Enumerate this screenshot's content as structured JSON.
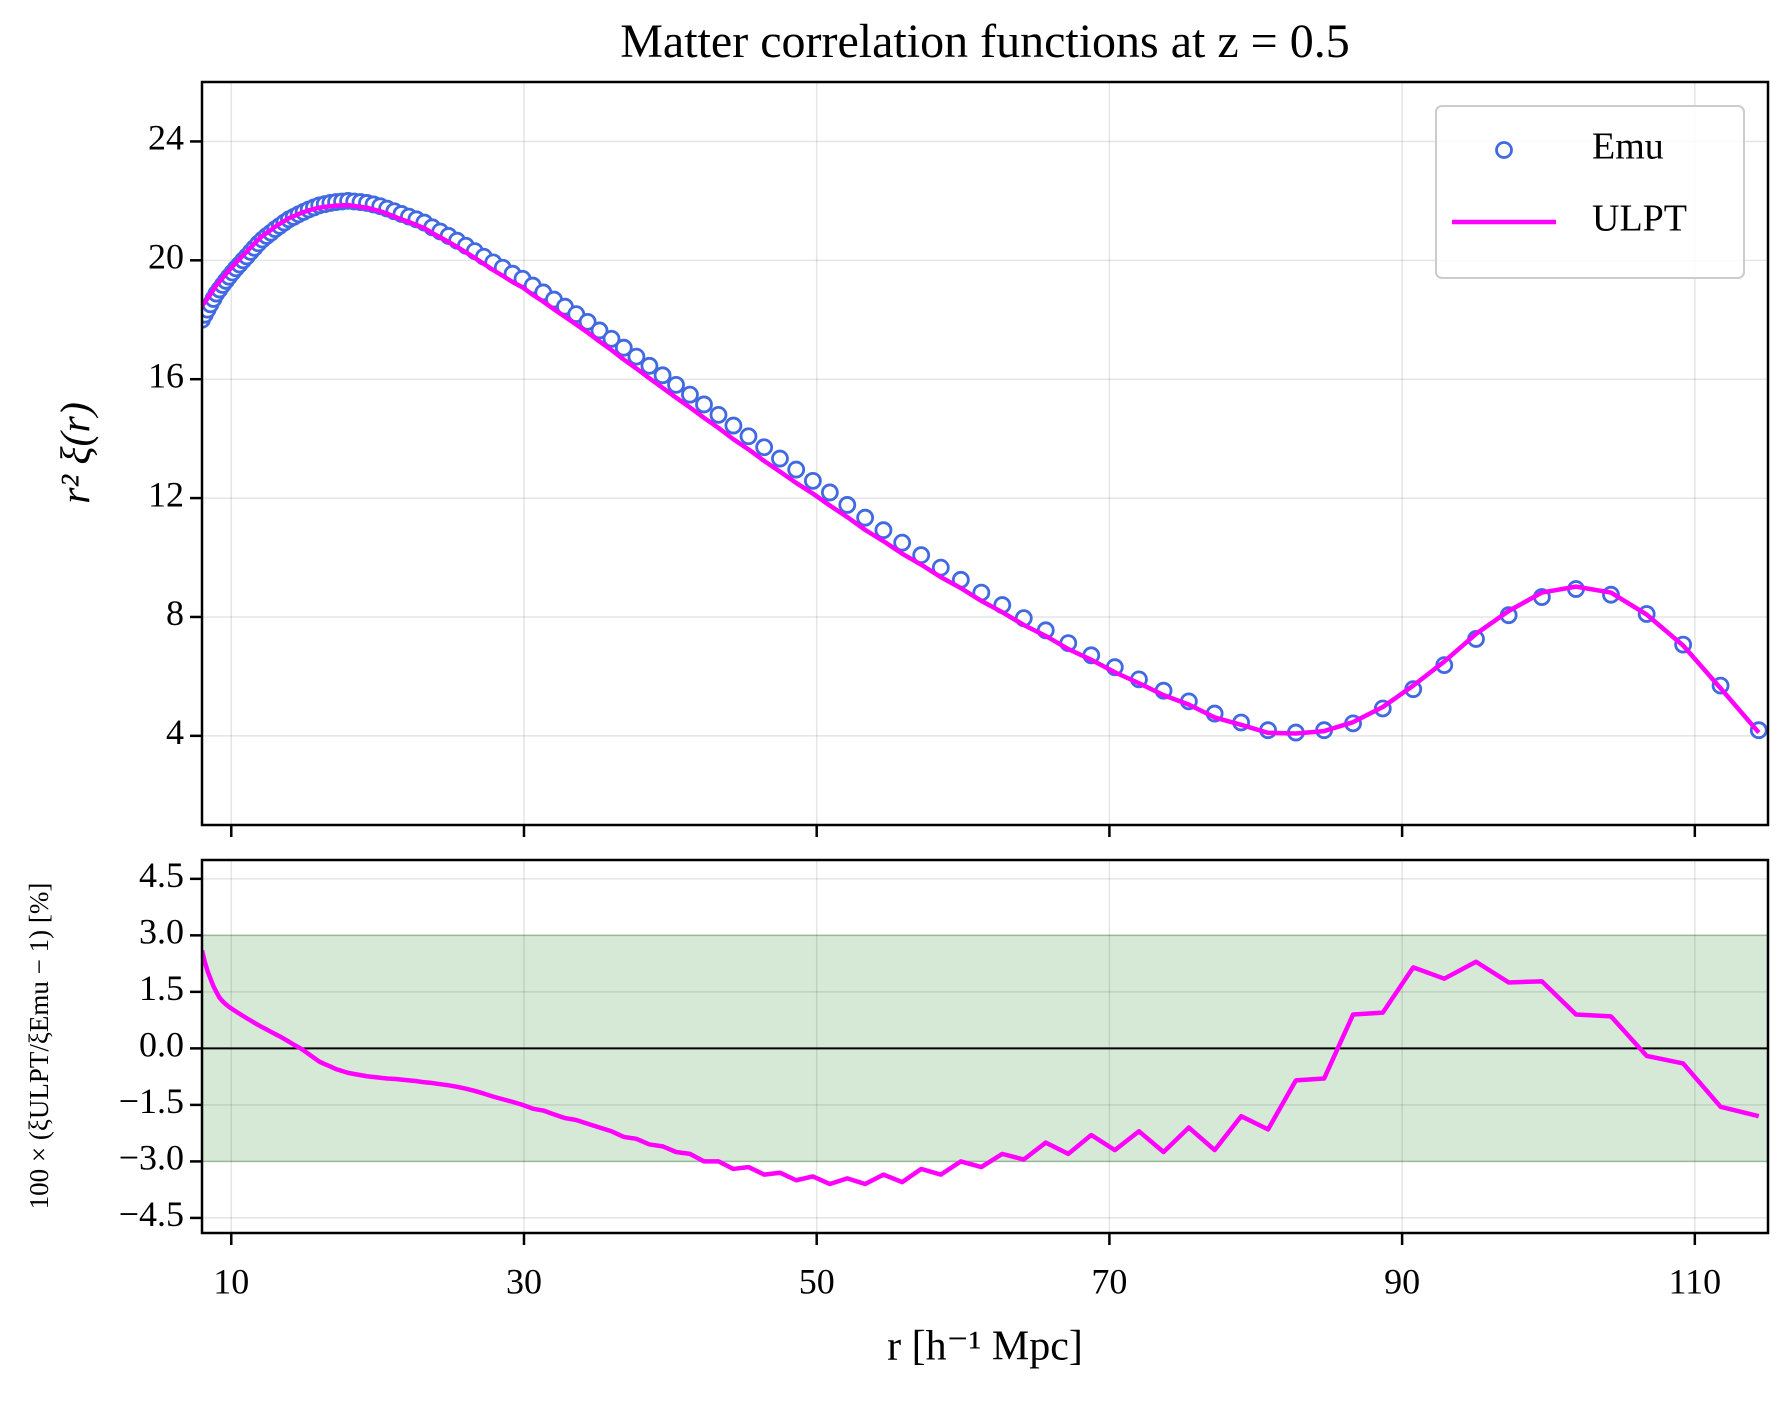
{
  "chart_data": [
    {
      "type": "line",
      "title": "Matter correlation functions at z = 0.5",
      "y_label": "r² ξ(r)",
      "x": [
        8.0,
        8.19,
        8.38,
        8.58,
        8.78,
        8.98,
        9.19,
        9.41,
        9.63,
        9.85,
        10.08,
        10.32,
        10.56,
        10.81,
        11.06,
        11.32,
        11.58,
        11.85,
        12.13,
        12.42,
        12.71,
        13.0,
        13.31,
        13.62,
        13.94,
        14.26,
        14.6,
        14.94,
        15.29,
        15.65,
        16.01,
        16.39,
        16.77,
        17.16,
        17.57,
        17.98,
        18.4,
        18.83,
        19.27,
        19.72,
        20.18,
        20.65,
        21.14,
        21.63,
        22.14,
        22.65,
        23.19,
        23.73,
        24.28,
        24.85,
        25.43,
        26.03,
        26.64,
        27.26,
        27.9,
        28.55,
        29.22,
        29.9,
        30.6,
        31.32,
        32.05,
        32.8,
        33.57,
        34.35,
        35.16,
        35.98,
        36.82,
        37.68,
        38.57,
        39.47,
        40.39,
        41.34,
        42.3,
        43.29,
        44.31,
        45.34,
        46.41,
        47.49,
        48.6,
        49.74,
        50.9,
        52.09,
        53.31,
        54.56,
        55.84,
        57.14,
        58.48,
        59.85,
        61.25,
        62.68,
        64.15,
        65.65,
        67.19,
        68.76,
        70.37,
        72.02,
        73.7,
        75.43,
        77.19,
        79.0,
        80.84,
        82.74,
        84.67,
        86.65,
        88.68,
        90.76,
        92.88,
        95.05,
        97.28,
        99.55,
        101.88,
        104.27,
        106.71,
        109.2,
        111.76,
        114.37
      ],
      "series": [
        {
          "name": "Emu",
          "style": "marker",
          "color": "#4169e1",
          "values": [
            18.0,
            18.17,
            18.34,
            18.52,
            18.7,
            18.88,
            19.02,
            19.17,
            19.31,
            19.45,
            19.59,
            19.73,
            19.86,
            20.0,
            20.13,
            20.28,
            20.42,
            20.57,
            20.7,
            20.82,
            20.93,
            21.05,
            21.16,
            21.27,
            21.38,
            21.46,
            21.55,
            21.63,
            21.71,
            21.78,
            21.85,
            21.89,
            21.93,
            21.96,
            21.98,
            22.0,
            21.98,
            21.96,
            21.93,
            21.88,
            21.82,
            21.74,
            21.65,
            21.56,
            21.47,
            21.38,
            21.27,
            21.11,
            20.97,
            20.82,
            20.66,
            20.49,
            20.31,
            20.12,
            19.93,
            19.75,
            19.55,
            19.38,
            19.15,
            18.92,
            18.68,
            18.44,
            18.19,
            17.93,
            17.64,
            17.36,
            17.06,
            16.76,
            16.45,
            16.13,
            15.81,
            15.48,
            15.15,
            14.8,
            14.44,
            14.08,
            13.71,
            13.33,
            12.96,
            12.58,
            12.19,
            11.77,
            11.34,
            10.92,
            10.5,
            10.08,
            9.66,
            9.25,
            8.82,
            8.4,
            7.96,
            7.55,
            7.12,
            6.71,
            6.31,
            5.9,
            5.52,
            5.16,
            4.75,
            4.45,
            4.19,
            4.11,
            4.19,
            4.42,
            4.92,
            5.57,
            6.38,
            7.26,
            8.06,
            8.67,
            8.94,
            8.75,
            8.1,
            7.07,
            5.69,
            4.19
          ]
        },
        {
          "name": "ULPT",
          "style": "line",
          "color": "#ff00ff",
          "values": [
            18.47,
            18.59,
            18.72,
            18.86,
            19.01,
            19.16,
            19.28,
            19.41,
            19.54,
            19.66,
            19.79,
            19.92,
            20.04,
            20.17,
            20.29,
            20.43,
            20.56,
            20.7,
            20.82,
            20.92,
            21.02,
            21.13,
            21.23,
            21.32,
            21.42,
            21.48,
            21.56,
            21.62,
            21.68,
            21.73,
            21.77,
            21.8,
            21.82,
            21.84,
            21.85,
            21.86,
            21.83,
            21.8,
            21.77,
            21.71,
            21.65,
            21.57,
            21.47,
            21.38,
            21.29,
            21.19,
            21.08,
            20.92,
            20.77,
            20.62,
            20.45,
            20.27,
            20.08,
            19.88,
            19.67,
            19.48,
            19.27,
            19.09,
            18.84,
            18.61,
            18.35,
            18.1,
            17.84,
            17.57,
            17.27,
            16.98,
            16.66,
            16.36,
            16.03,
            15.71,
            15.38,
            15.05,
            14.7,
            14.36,
            13.98,
            13.64,
            13.25,
            12.89,
            12.51,
            12.15,
            11.75,
            11.36,
            10.93,
            10.55,
            10.13,
            9.76,
            9.34,
            8.97,
            8.54,
            8.16,
            7.73,
            7.36,
            6.92,
            6.56,
            6.14,
            5.77,
            5.37,
            5.05,
            4.62,
            4.37,
            4.1,
            4.08,
            4.16,
            4.46,
            4.97,
            5.69,
            6.5,
            7.43,
            8.2,
            8.82,
            9.02,
            8.82,
            8.08,
            7.04,
            5.6,
            4.11
          ]
        }
      ],
      "xlim": [
        8,
        115
      ],
      "xticks": [
        10,
        30,
        50,
        70,
        90,
        110
      ],
      "ylim": [
        1,
        26
      ],
      "yticks": [
        4,
        8,
        12,
        16,
        20,
        24
      ],
      "grid": true,
      "legend": "upper right"
    },
    {
      "type": "line",
      "x_label": "r [h⁻¹ Mpc]",
      "y_label": "100 × (ξULPT/ξEmu − 1) [%]",
      "x": [
        8.0,
        8.19,
        8.38,
        8.58,
        8.78,
        8.98,
        9.19,
        9.41,
        9.63,
        9.85,
        10.08,
        10.32,
        10.56,
        10.81,
        11.06,
        11.32,
        11.58,
        11.85,
        12.13,
        12.42,
        12.71,
        13.0,
        13.31,
        13.62,
        13.94,
        14.26,
        14.6,
        14.94,
        15.29,
        15.65,
        16.01,
        16.39,
        16.77,
        17.16,
        17.57,
        17.98,
        18.4,
        18.83,
        19.27,
        19.72,
        20.18,
        20.65,
        21.14,
        21.63,
        22.14,
        22.65,
        23.19,
        23.73,
        24.28,
        24.85,
        25.43,
        26.03,
        26.64,
        27.26,
        27.9,
        28.55,
        29.22,
        29.9,
        30.6,
        31.32,
        32.05,
        32.8,
        33.57,
        34.35,
        35.16,
        35.98,
        36.82,
        37.68,
        38.57,
        39.47,
        40.39,
        41.34,
        42.3,
        43.29,
        44.31,
        45.34,
        46.41,
        47.49,
        48.6,
        49.74,
        50.9,
        52.09,
        53.31,
        54.56,
        55.84,
        57.14,
        58.48,
        59.85,
        61.25,
        62.68,
        64.15,
        65.65,
        67.19,
        68.76,
        70.37,
        72.02,
        73.7,
        75.43,
        77.19,
        79.0,
        80.84,
        82.74,
        84.67,
        86.65,
        88.68,
        90.76,
        92.88,
        95.05,
        97.28,
        99.55,
        101.88,
        104.27,
        106.71,
        109.2,
        111.76,
        114.37
      ],
      "series": [
        {
          "color": "#ff00ff",
          "values": [
            2.6,
            2.3,
            2.05,
            1.85,
            1.65,
            1.5,
            1.35,
            1.25,
            1.17,
            1.1,
            1.04,
            0.98,
            0.92,
            0.86,
            0.8,
            0.74,
            0.68,
            0.62,
            0.56,
            0.5,
            0.44,
            0.38,
            0.32,
            0.25,
            0.18,
            0.1,
            0.03,
            -0.05,
            -0.15,
            -0.25,
            -0.35,
            -0.42,
            -0.48,
            -0.55,
            -0.6,
            -0.65,
            -0.68,
            -0.71,
            -0.74,
            -0.76,
            -0.78,
            -0.8,
            -0.81,
            -0.83,
            -0.85,
            -0.87,
            -0.9,
            -0.92,
            -0.95,
            -0.98,
            -1.02,
            -1.07,
            -1.13,
            -1.2,
            -1.28,
            -1.35,
            -1.42,
            -1.5,
            -1.6,
            -1.65,
            -1.75,
            -1.85,
            -1.9,
            -2.0,
            -2.1,
            -2.2,
            -2.35,
            -2.4,
            -2.55,
            -2.6,
            -2.75,
            -2.8,
            -3.0,
            -3.0,
            -3.2,
            -3.15,
            -3.35,
            -3.3,
            -3.5,
            -3.4,
            -3.6,
            -3.45,
            -3.6,
            -3.35,
            -3.55,
            -3.2,
            -3.35,
            -3.0,
            -3.15,
            -2.8,
            -2.95,
            -2.5,
            -2.8,
            -2.3,
            -2.7,
            -2.2,
            -2.75,
            -2.1,
            -2.7,
            -1.8,
            -2.15,
            -0.85,
            -0.8,
            0.9,
            0.95,
            2.15,
            1.85,
            2.3,
            1.75,
            1.78,
            0.9,
            0.85,
            -0.2,
            -0.4,
            -1.55,
            -1.8
          ]
        }
      ],
      "band": [
        -3,
        3
      ],
      "band_color": "#d6e9d6",
      "hline": 0,
      "xlim": [
        8,
        115
      ],
      "xticks": [
        10,
        30,
        50,
        70,
        90,
        110
      ],
      "ylim": [
        -4.9,
        5
      ],
      "yticks": [
        4.5,
        {
          "value": 3,
          "label": "3.0"
        },
        1.5,
        {
          "value": 0,
          "label": "0.0"
        },
        {
          "value": -1.5,
          "label": "−1.5"
        },
        {
          "value": -3,
          "label": "−3.0"
        },
        {
          "value": -4.5,
          "label": "−4.5"
        }
      ],
      "grid": true
    }
  ]
}
